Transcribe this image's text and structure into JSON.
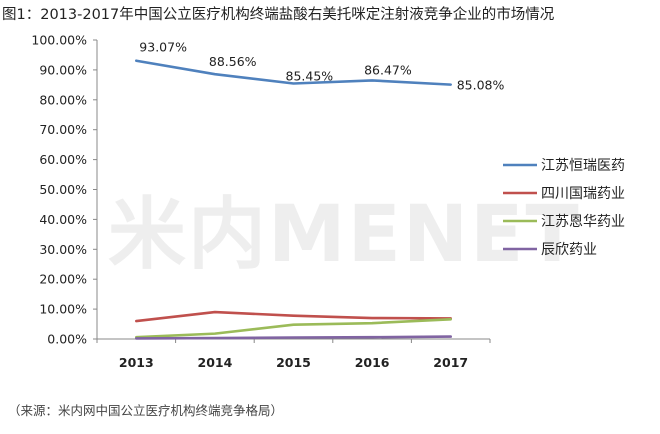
{
  "title": "图1：2013-2017年中国公立医疗机构终端盐酸右美托咪定注射液竞争企业的市场情况",
  "source": "（来源：米内网中国公立医疗机构终端竞争格局）",
  "watermark": "米内MENET",
  "chart_data": {
    "type": "line",
    "x": [
      "2013",
      "2014",
      "2015",
      "2016",
      "2017"
    ],
    "ylim": [
      0,
      100
    ],
    "yticks": [
      "0.00%",
      "10.00%",
      "20.00%",
      "30.00%",
      "40.00%",
      "50.00%",
      "60.00%",
      "70.00%",
      "80.00%",
      "90.00%",
      "100.00%"
    ],
    "grid": false,
    "legend": "right",
    "series": [
      {
        "name": "江苏恒瑞医药",
        "color": "#4f81bd",
        "values": [
          93.07,
          88.56,
          85.45,
          86.47,
          85.08
        ],
        "labels": [
          "93.07%",
          "88.56%",
          "85.45%",
          "86.47%",
          "85.08%"
        ]
      },
      {
        "name": "四川国瑞药业",
        "color": "#c0504d",
        "values": [
          6.0,
          9.0,
          7.8,
          7.0,
          6.9
        ]
      },
      {
        "name": "江苏恩华药业",
        "color": "#9bbb59",
        "values": [
          0.6,
          1.8,
          4.8,
          5.3,
          6.6
        ]
      },
      {
        "name": "辰欣药业",
        "color": "#8064a2",
        "values": [
          0.2,
          0.3,
          0.5,
          0.6,
          0.8
        ]
      }
    ]
  }
}
